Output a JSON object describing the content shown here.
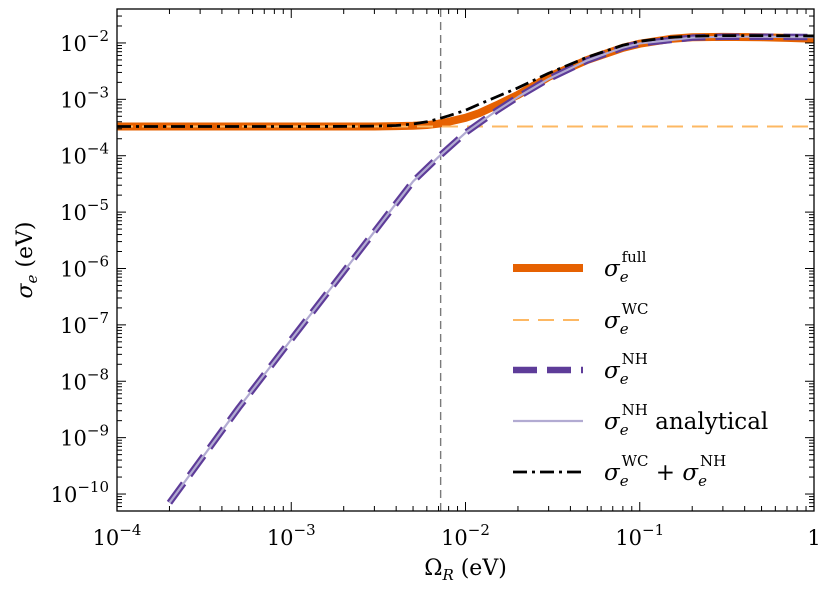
{
  "chart_data": {
    "type": "line",
    "xscale": "log",
    "yscale": "log",
    "xlim": [
      0.0001,
      1
    ],
    "ylim": [
      5e-11,
      0.04
    ],
    "xlabel": "ΩR (eV)",
    "ylabel": "σe (eV)",
    "xticks": [
      {
        "value": 0.0001,
        "base": "10",
        "exp": "−4"
      },
      {
        "value": 0.001,
        "base": "10",
        "exp": "−3"
      },
      {
        "value": 0.01,
        "base": "10",
        "exp": "−2"
      },
      {
        "value": 0.1,
        "base": "10",
        "exp": "−1"
      },
      {
        "value": 1,
        "base": "1",
        "exp": ""
      }
    ],
    "yticks": [
      {
        "value": 1e-10,
        "base": "10",
        "exp": "−10"
      },
      {
        "value": 1e-09,
        "base": "10",
        "exp": "−9"
      },
      {
        "value": 1e-08,
        "base": "10",
        "exp": "−8"
      },
      {
        "value": 1e-07,
        "base": "10",
        "exp": "−7"
      },
      {
        "value": 1e-06,
        "base": "10",
        "exp": "−6"
      },
      {
        "value": 1e-05,
        "base": "10",
        "exp": "−5"
      },
      {
        "value": 0.0001,
        "base": "10",
        "exp": "−4"
      },
      {
        "value": 0.001,
        "base": "10",
        "exp": "−3"
      },
      {
        "value": 0.01,
        "base": "10",
        "exp": "−2"
      }
    ],
    "vline": {
      "x": 0.0072
    },
    "legend_position": "center-right",
    "series": [
      {
        "name": "σe^full",
        "label_main": "σ",
        "label_sub": "e",
        "label_sup": "full",
        "label_tail": "",
        "color": "#e66101",
        "style": "solid-thick",
        "x": [
          0.0001,
          0.0005,
          0.001,
          0.002,
          0.003,
          0.004,
          0.005,
          0.006,
          0.007,
          0.008,
          0.01,
          0.012,
          0.015,
          0.02,
          0.03,
          0.05,
          0.08,
          0.1,
          0.15,
          0.2,
          0.3,
          0.5,
          0.7,
          1
        ],
        "y": [
          0.00033,
          0.00033,
          0.00033,
          0.00033,
          0.00033,
          0.000335,
          0.00034,
          0.00035,
          0.00037,
          0.0004,
          0.00047,
          0.00057,
          0.00078,
          0.0012,
          0.0025,
          0.005,
          0.0082,
          0.0097,
          0.0118,
          0.0126,
          0.0128,
          0.0126,
          0.0123,
          0.0119
        ]
      },
      {
        "name": "σe^WC",
        "label_main": "σ",
        "label_sub": "e",
        "label_sup": "WC",
        "label_tail": "",
        "color": "#fdb863",
        "style": "dashed-thin",
        "x": [
          0.0001,
          1
        ],
        "y": [
          0.00033,
          0.00033
        ]
      },
      {
        "name": "σe^NH",
        "label_main": "σ",
        "label_sub": "e",
        "label_sup": "NH",
        "label_tail": "",
        "color": "#5e3c99",
        "style": "dashed-thick",
        "x": [
          0.0002,
          0.0005,
          0.001,
          0.002,
          0.003,
          0.005,
          0.007,
          0.01,
          0.015,
          0.02,
          0.03,
          0.05,
          0.08,
          0.1,
          0.2,
          0.3,
          0.5,
          1
        ],
        "y": [
          7e-11,
          3.4e-09,
          5.5e-08,
          8.8e-07,
          4.5e-06,
          3.5e-05,
          9.5e-05,
          0.000255,
          0.00062,
          0.0011,
          0.0023,
          0.0049,
          0.0083,
          0.0098,
          0.0124,
          0.0129,
          0.0129,
          0.0127
        ]
      },
      {
        "name": "σe^NH analytical",
        "label_main": "σ",
        "label_sub": "e",
        "label_sup": "NH",
        "label_tail": " analytical",
        "color": "#b2abd2",
        "style": "solid-thin",
        "x": [
          0.0002,
          0.0005,
          0.001,
          0.002,
          0.003,
          0.005,
          0.007,
          0.01,
          0.015,
          0.02,
          0.03,
          0.05,
          0.08,
          0.1,
          0.2,
          0.3,
          0.5,
          1
        ],
        "y": [
          7e-11,
          3.4e-09,
          5.5e-08,
          8.8e-07,
          4.5e-06,
          3.5e-05,
          9.5e-05,
          0.000255,
          0.00062,
          0.0011,
          0.0023,
          0.0049,
          0.0083,
          0.0098,
          0.0124,
          0.0129,
          0.0129,
          0.0127
        ]
      },
      {
        "name": "σe^WC + σe^NH",
        "label_main": "σ",
        "label_sub": "e",
        "label_sup": "WC",
        "label_tail": " + σ",
        "label_sub2": "e",
        "label_sup2": "NH",
        "color": "#000000",
        "style": "dashdot",
        "x": [
          0.0001,
          0.001,
          0.002,
          0.003,
          0.004,
          0.005,
          0.006,
          0.007,
          0.008,
          0.01,
          0.012,
          0.015,
          0.02,
          0.03,
          0.05,
          0.08,
          0.1,
          0.15,
          0.2,
          0.3,
          0.5,
          1
        ],
        "y": [
          0.00033,
          0.00033,
          0.000331,
          0.000335,
          0.000343,
          0.000365,
          0.0004,
          0.00045,
          0.00051,
          0.00064,
          0.00082,
          0.0011,
          0.0016,
          0.0029,
          0.0056,
          0.0091,
          0.0107,
          0.0126,
          0.0132,
          0.0135,
          0.0135,
          0.0133
        ]
      }
    ]
  }
}
